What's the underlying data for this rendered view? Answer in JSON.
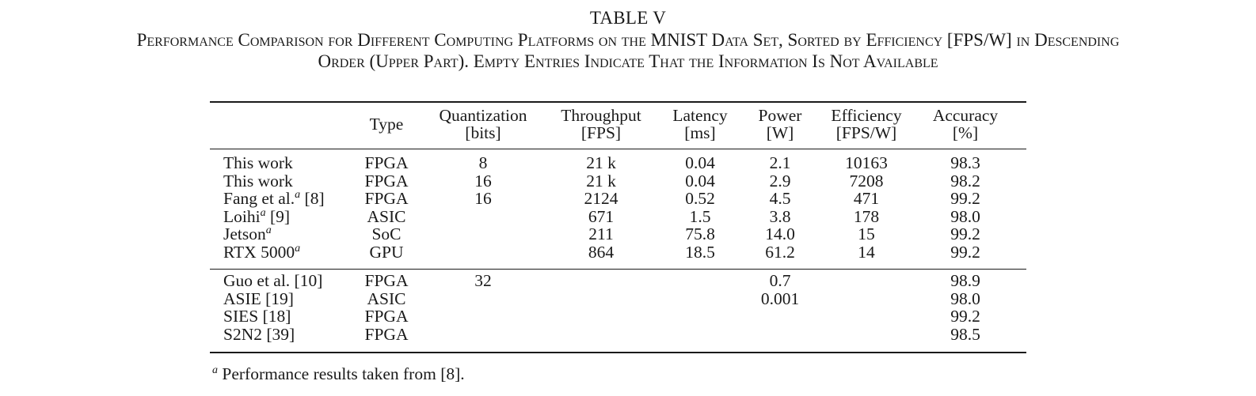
{
  "table": {
    "number": "TABLE V",
    "caption_line1": "Performance Comparison for Different Computing Platforms on the MNIST Data Set, Sorted by Efficiency [FPS/W] in Descending",
    "caption_line2": "Order (Upper Part). Empty Entries Indicate That the Information Is Not Available",
    "headers": {
      "type": "Type",
      "quantization_1": "Quantization",
      "quantization_2": "[bits]",
      "throughput_1": "Throughput",
      "throughput_2": "[FPS]",
      "latency_1": "Latency",
      "latency_2": "[ms]",
      "power_1": "Power",
      "power_2": "[W]",
      "efficiency_1": "Efficiency",
      "efficiency_2": "[FPS/W]",
      "accuracy_1": "Accuracy",
      "accuracy_2": "[%]"
    },
    "upper_rows": [
      {
        "name": "This work",
        "note": "",
        "ref": "",
        "type": "FPGA",
        "quantization": "8",
        "throughput": "21 k",
        "latency": "0.04",
        "power": "2.1",
        "efficiency": "10163",
        "accuracy": "98.3"
      },
      {
        "name": "This work",
        "note": "",
        "ref": "",
        "type": "FPGA",
        "quantization": "16",
        "throughput": "21 k",
        "latency": "0.04",
        "power": "2.9",
        "efficiency": "7208",
        "accuracy": "98.2"
      },
      {
        "name": "Fang et al.",
        "note": "a",
        "ref": " [8]",
        "type": "FPGA",
        "quantization": "16",
        "throughput": "2124",
        "latency": "0.52",
        "power": "4.5",
        "efficiency": "471",
        "accuracy": "99.2"
      },
      {
        "name": "Loihi",
        "note": "a",
        "ref": " [9]",
        "type": "ASIC",
        "quantization": "",
        "throughput": "671",
        "latency": "1.5",
        "power": "3.8",
        "efficiency": "178",
        "accuracy": "98.0"
      },
      {
        "name": "Jetson",
        "note": "a",
        "ref": "",
        "type": "SoC",
        "quantization": "",
        "throughput": "211",
        "latency": "75.8",
        "power": "14.0",
        "efficiency": "15",
        "accuracy": "99.2"
      },
      {
        "name": "RTX 5000",
        "note": "a",
        "ref": "",
        "type": "GPU",
        "quantization": "",
        "throughput": "864",
        "latency": "18.5",
        "power": "61.2",
        "efficiency": "14",
        "accuracy": "99.2"
      }
    ],
    "lower_rows": [
      {
        "name": "Guo et al. [10]",
        "type": "FPGA",
        "quantization": "32",
        "throughput": "",
        "latency": "",
        "power": "0.7",
        "efficiency": "",
        "accuracy": "98.9"
      },
      {
        "name": "ASIE [19]",
        "type": "ASIC",
        "quantization": "",
        "throughput": "",
        "latency": "",
        "power": "0.001",
        "efficiency": "",
        "accuracy": "98.0"
      },
      {
        "name": "SIES [18]",
        "type": "FPGA",
        "quantization": "",
        "throughput": "",
        "latency": "",
        "power": "",
        "efficiency": "",
        "accuracy": "99.2"
      },
      {
        "name": "S2N2 [39]",
        "type": "FPGA",
        "quantization": "",
        "throughput": "",
        "latency": "",
        "power": "",
        "efficiency": "",
        "accuracy": "98.5"
      }
    ],
    "footnote_mark": "a",
    "footnote_text": " Performance results taken from [8]."
  }
}
